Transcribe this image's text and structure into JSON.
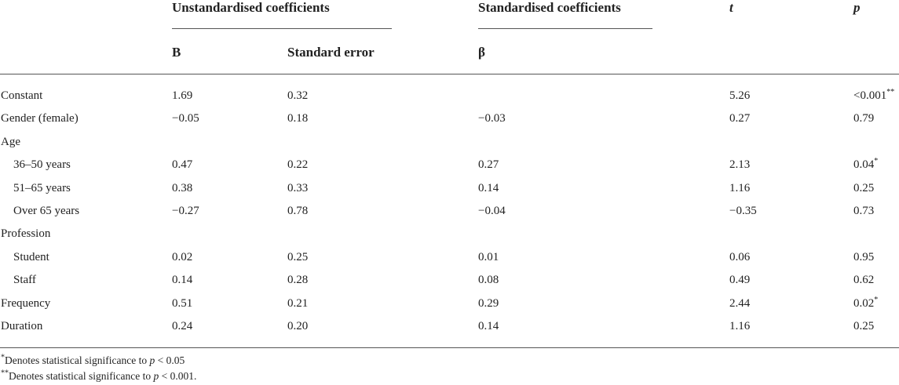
{
  "header": {
    "group_unstd": "Unstandardised coefficients",
    "group_std": "Standardised coefficients",
    "t": "t",
    "p": "p",
    "b": "B",
    "se": "Standard error",
    "beta": "β"
  },
  "rows": [
    {
      "label": "Constant",
      "indent": false,
      "b": "1.69",
      "se": "0.32",
      "beta": "",
      "t": "5.26",
      "p": "<0.001",
      "sig": "**"
    },
    {
      "label": "Gender (female)",
      "indent": false,
      "b": "−0.05",
      "se": "0.18",
      "beta": "−0.03",
      "t": "0.27",
      "p": "0.79",
      "sig": ""
    },
    {
      "label": "Age",
      "indent": false,
      "b": "",
      "se": "",
      "beta": "",
      "t": "",
      "p": "",
      "sig": ""
    },
    {
      "label": "36–50 years",
      "indent": true,
      "b": "0.47",
      "se": "0.22",
      "beta": "0.27",
      "t": "2.13",
      "p": "0.04",
      "sig": "*"
    },
    {
      "label": "51–65 years",
      "indent": true,
      "b": "0.38",
      "se": "0.33",
      "beta": "0.14",
      "t": "1.16",
      "p": "0.25",
      "sig": ""
    },
    {
      "label": "Over 65 years",
      "indent": true,
      "b": "−0.27",
      "se": "0.78",
      "beta": "−0.04",
      "t": "−0.35",
      "p": "0.73",
      "sig": ""
    },
    {
      "label": "Profession",
      "indent": false,
      "b": "",
      "se": "",
      "beta": "",
      "t": "",
      "p": "",
      "sig": ""
    },
    {
      "label": "Student",
      "indent": true,
      "b": "0.02",
      "se": "0.25",
      "beta": "0.01",
      "t": "0.06",
      "p": "0.95",
      "sig": ""
    },
    {
      "label": "Staff",
      "indent": true,
      "b": "0.14",
      "se": "0.28",
      "beta": "0.08",
      "t": "0.49",
      "p": "0.62",
      "sig": ""
    },
    {
      "label": "Frequency",
      "indent": false,
      "b": "0.51",
      "se": "0.21",
      "beta": "0.29",
      "t": "2.44",
      "p": "0.02",
      "sig": "*"
    },
    {
      "label": "Duration",
      "indent": false,
      "b": "0.24",
      "se": "0.20",
      "beta": "0.14",
      "t": "1.16",
      "p": "0.25",
      "sig": ""
    }
  ],
  "footnotes": {
    "single_marker": "*",
    "single_text": "Denotes statistical significance to ",
    "single_p": "p",
    "single_rest": " < 0.05",
    "double_marker": "**",
    "double_text": "Denotes statistical significance to ",
    "double_p": "p",
    "double_rest": " < 0.001."
  }
}
